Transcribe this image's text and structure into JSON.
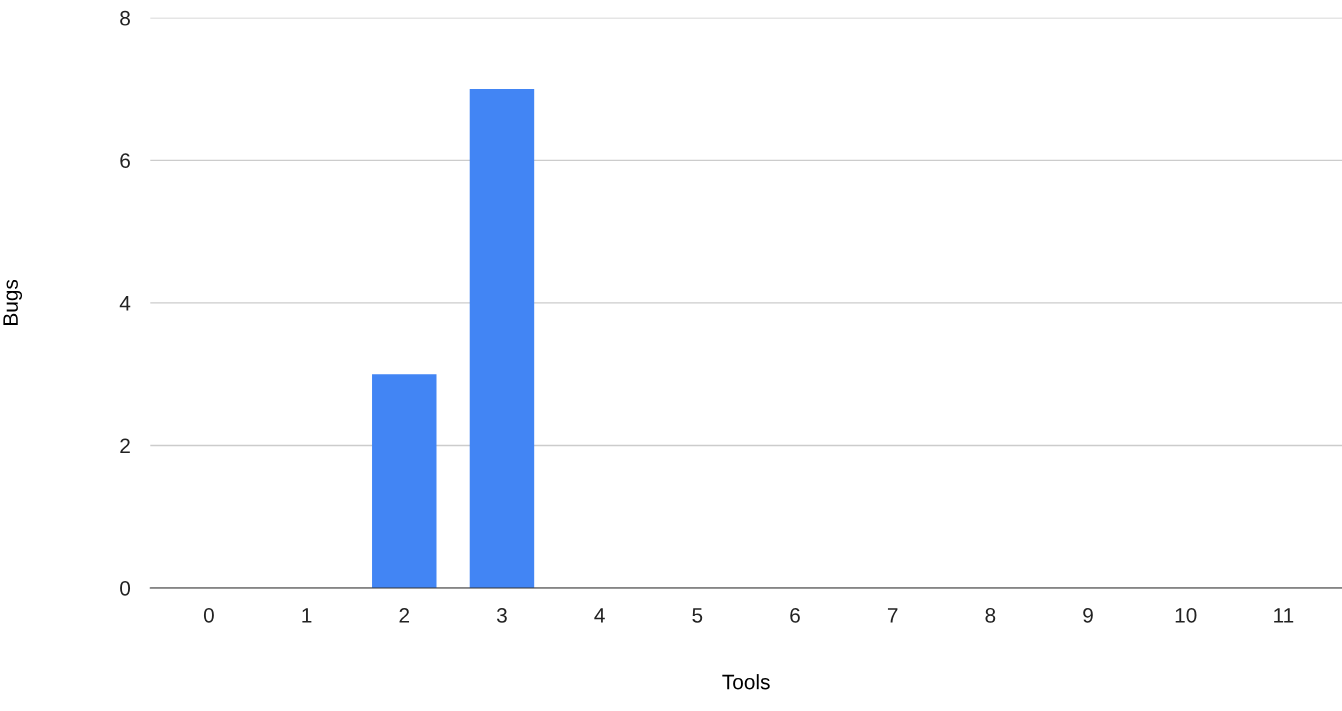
{
  "chart_data": {
    "type": "bar",
    "xlabel": "Tools",
    "ylabel": "Bugs",
    "categories": [
      "0",
      "1",
      "2",
      "3",
      "4",
      "5",
      "6",
      "7",
      "8",
      "9",
      "10",
      "11"
    ],
    "values": [
      0,
      0,
      3,
      7,
      0,
      0,
      0,
      0,
      0,
      0,
      0,
      0
    ],
    "color": "#4285f4",
    "ylim": [
      0,
      8
    ],
    "yticks": [
      0,
      2,
      4,
      6,
      8
    ],
    "grid": "y",
    "legend": false
  }
}
